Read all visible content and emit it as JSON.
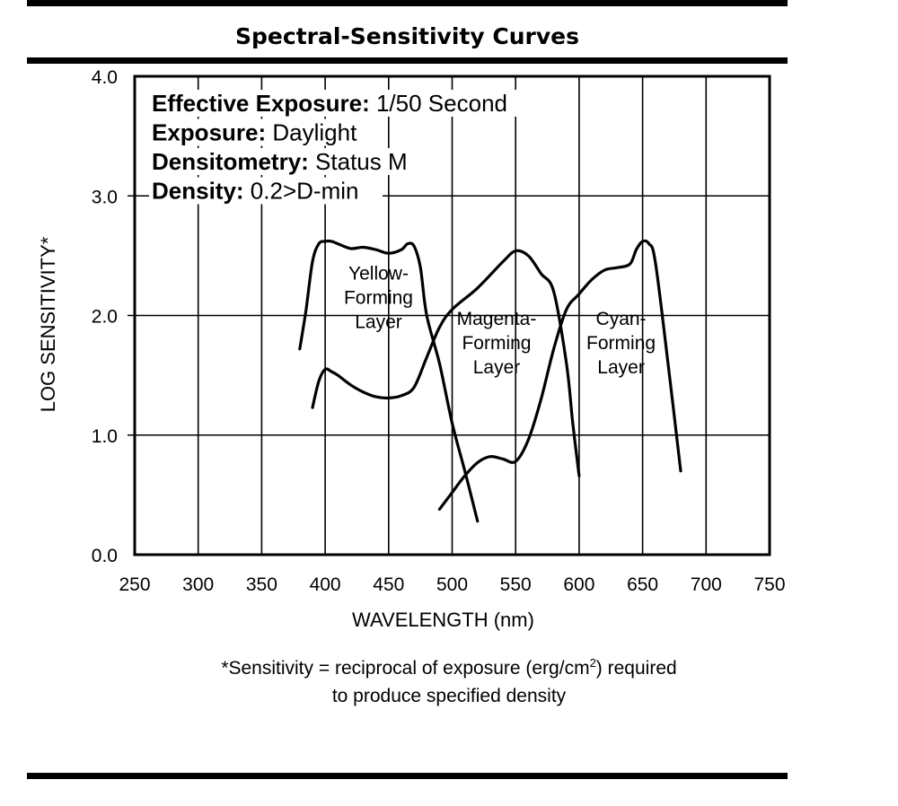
{
  "title": "Spectral-Sensitivity Curves",
  "chart_data": {
    "type": "line",
    "xlabel": "WAVELENGTH (nm)",
    "ylabel": "LOG SENSITIVITY*",
    "xlim": [
      250,
      750
    ],
    "ylim": [
      0.0,
      4.0
    ],
    "x_ticks": [
      "250",
      "300",
      "350",
      "400",
      "450",
      "500",
      "550",
      "600",
      "650",
      "700",
      "750"
    ],
    "y_ticks": [
      "0.0",
      "1.0",
      "2.0",
      "3.0",
      "4.0"
    ],
    "grid": true,
    "info_lines": [
      {
        "key": "Effective Exposure:",
        "value": " 1/50 Second"
      },
      {
        "key": "Exposure:",
        "value": " Daylight"
      },
      {
        "key": "Densitometry:",
        "value": " Status M"
      },
      {
        "key": "Density:",
        "value": " 0.2>D-min"
      }
    ],
    "series": [
      {
        "x": [
          380,
          385,
          390,
          395,
          400,
          405,
          410,
          420,
          430,
          440,
          450,
          460,
          465,
          470,
          475,
          480,
          490,
          500,
          510,
          520
        ],
        "y": [
          1.72,
          2.05,
          2.45,
          2.6,
          2.62,
          2.62,
          2.6,
          2.56,
          2.57,
          2.55,
          2.52,
          2.55,
          2.6,
          2.58,
          2.4,
          2.0,
          1.6,
          1.1,
          0.7,
          0.28
        ]
      },
      {
        "x": [
          390,
          395,
          400,
          405,
          410,
          420,
          430,
          440,
          450,
          460,
          470,
          480,
          490,
          500,
          520,
          540,
          550,
          560,
          570,
          580,
          590,
          595,
          600
        ],
        "y": [
          1.23,
          1.45,
          1.55,
          1.53,
          1.5,
          1.42,
          1.36,
          1.32,
          1.31,
          1.33,
          1.4,
          1.65,
          1.9,
          2.05,
          2.23,
          2.45,
          2.54,
          2.5,
          2.35,
          2.2,
          1.6,
          1.1,
          0.66
        ]
      },
      {
        "x": [
          490,
          500,
          510,
          520,
          530,
          540,
          550,
          560,
          570,
          580,
          590,
          600,
          610,
          620,
          630,
          640,
          645,
          650,
          655,
          660,
          670,
          680
        ],
        "y": [
          0.38,
          0.52,
          0.66,
          0.77,
          0.82,
          0.8,
          0.78,
          0.96,
          1.3,
          1.72,
          2.05,
          2.18,
          2.3,
          2.38,
          2.4,
          2.43,
          2.55,
          2.62,
          2.6,
          2.45,
          1.6,
          0.7
        ]
      }
    ],
    "annotations": [
      {
        "lines": [
          "Yellow-",
          "Forming",
          "Layer"
        ],
        "x": 442,
        "y": 2.3
      },
      {
        "lines": [
          "Magenta-",
          "Forming",
          "Layer"
        ],
        "x": 535,
        "y": 1.92
      },
      {
        "lines": [
          "Cyan-",
          "Forming",
          "Layer"
        ],
        "x": 633,
        "y": 1.92
      }
    ]
  },
  "footnote": {
    "line1_pre": "*Sensitivity = reciprocal of exposure (erg/cm",
    "line1_sup": "2",
    "line1_post": ") required",
    "line2": "to produce specified density"
  }
}
